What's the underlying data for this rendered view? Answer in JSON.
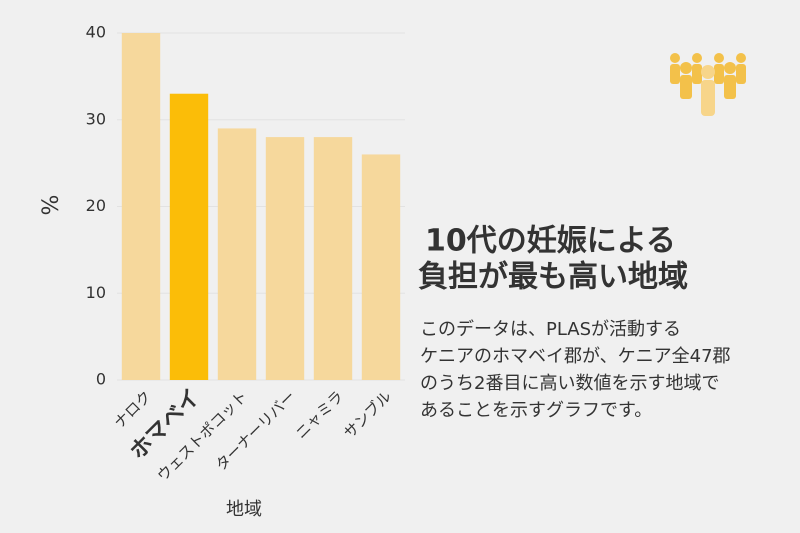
{
  "chart_data": {
    "type": "bar",
    "title": [
      "10代の妊娠による",
      "負担が最も高い地域"
    ],
    "description": [
      "このデータは、PLASが活動する",
      "ケニアのホマベイ郡が、ケニア全47郡",
      "のうち2番目に高い数値を示す地域で",
      "あることを示すグラフです。"
    ],
    "ylabel": "%",
    "xlabel": "地域",
    "categories": [
      "ナロク",
      "ホマベイ",
      "ウェストポコット",
      "ターナーリバー",
      "ニャミラ",
      "サンブル"
    ],
    "values": [
      40,
      33,
      29,
      28,
      28,
      26
    ],
    "colors": [
      "#f6d89c",
      "#fbbd08",
      "#f6d89c",
      "#f6d89c",
      "#f6d89c",
      "#f6d89c"
    ],
    "highlight_index": 1,
    "ylim": [
      0,
      40
    ],
    "yticks": [
      0,
      10,
      20,
      30,
      40
    ],
    "grid": true
  }
}
